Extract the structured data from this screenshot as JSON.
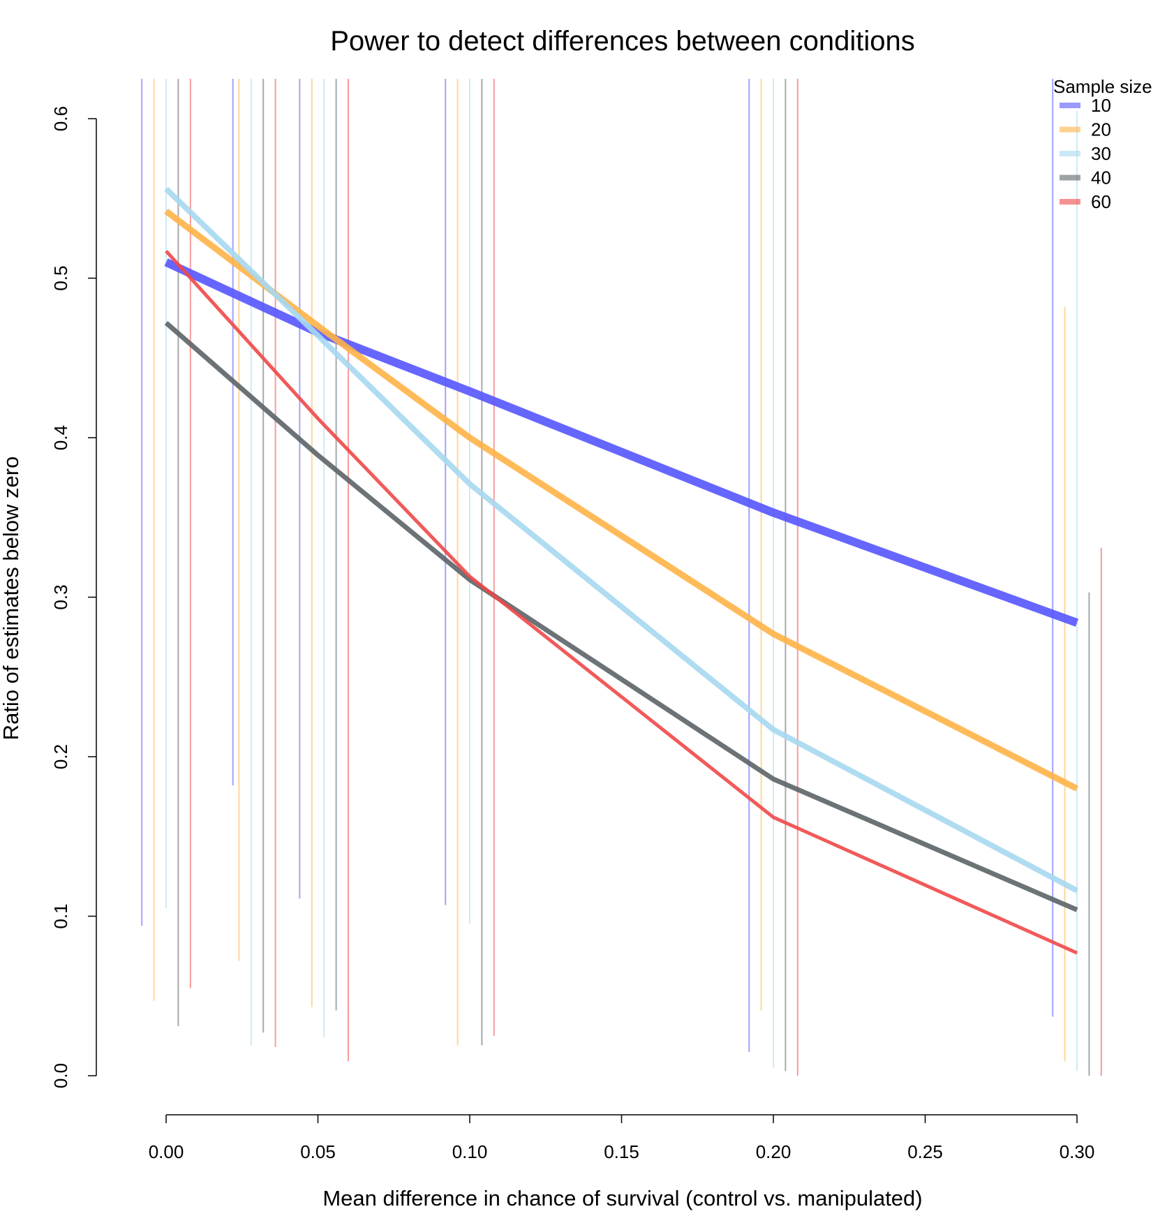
{
  "chart_data": {
    "type": "line",
    "title": "Power to detect differences between conditions",
    "xlabel": "Mean difference in chance of survival (control vs. manipulated)",
    "ylabel": "Ratio of estimates below zero",
    "xlim": [
      0,
      0.3
    ],
    "ylim": [
      0,
      0.6
    ],
    "x_ticks": [
      "0.00",
      "0.05",
      "0.10",
      "0.15",
      "0.20",
      "0.25",
      "0.30"
    ],
    "y_ticks": [
      "0.0",
      "0.1",
      "0.2",
      "0.3",
      "0.4",
      "0.5",
      "0.6"
    ],
    "legend": {
      "title": "Sample size",
      "placement": "top-right"
    },
    "x": [
      0.0,
      0.05,
      0.1,
      0.2,
      0.3
    ],
    "series": [
      {
        "name": "10",
        "color": "#5555ff",
        "values": [
          0.51,
          0.466,
          0.429,
          0.353,
          0.284
        ],
        "interval_lo": [
          0.094,
          0.182,
          0.111,
          0.107,
          0.015,
          0.037
        ],
        "interval_hi": [
          0.625,
          0.625,
          0.625,
          0.625,
          0.625,
          0.625
        ],
        "interval_x": [
          -0.008,
          0.022,
          0.044,
          0.092,
          0.192,
          0.292
        ]
      },
      {
        "name": "20",
        "color": "#ffb347",
        "values": [
          0.542,
          0.47,
          0.4,
          0.277,
          0.18
        ]
      },
      {
        "name": "30",
        "color": "#a6d8ef",
        "values": [
          0.556,
          0.464,
          0.371,
          0.217,
          0.116
        ]
      },
      {
        "name": "40",
        "color": "#5c6468",
        "values": [
          0.472,
          0.389,
          0.311,
          0.186,
          0.104
        ]
      },
      {
        "name": "60",
        "color": "#f04848",
        "values": [
          0.517,
          0.412,
          0.313,
          0.162,
          0.077
        ]
      }
    ],
    "intervals": [
      {
        "series": "10",
        "lines": [
          {
            "x": -0.008,
            "lo": 0.094,
            "hi": 0.625
          },
          {
            "x": 0.022,
            "lo": 0.182,
            "hi": 0.625
          },
          {
            "x": 0.044,
            "lo": 0.111,
            "hi": 0.625
          },
          {
            "x": 0.092,
            "lo": 0.107,
            "hi": 0.625
          },
          {
            "x": 0.192,
            "lo": 0.015,
            "hi": 0.625
          },
          {
            "x": 0.292,
            "lo": 0.037,
            "hi": 0.625
          }
        ]
      },
      {
        "series": "20",
        "lines": [
          {
            "x": -0.004,
            "lo": 0.047,
            "hi": 0.625
          },
          {
            "x": 0.024,
            "lo": 0.072,
            "hi": 0.625
          },
          {
            "x": 0.048,
            "lo": 0.043,
            "hi": 0.625
          },
          {
            "x": 0.096,
            "lo": 0.019,
            "hi": 0.625
          },
          {
            "x": 0.196,
            "lo": 0.041,
            "hi": 0.625
          },
          {
            "x": 0.296,
            "lo": 0.009,
            "hi": 0.482
          }
        ]
      },
      {
        "series": "30",
        "lines": [
          {
            "x": 0.0,
            "lo": 0.105,
            "hi": 0.625
          },
          {
            "x": 0.028,
            "lo": 0.019,
            "hi": 0.625
          },
          {
            "x": 0.052,
            "lo": 0.024,
            "hi": 0.625
          },
          {
            "x": 0.1,
            "lo": 0.095,
            "hi": 0.625
          },
          {
            "x": 0.2,
            "lo": 0.005,
            "hi": 0.625
          },
          {
            "x": 0.3,
            "lo": 0.003,
            "hi": 0.605
          }
        ]
      },
      {
        "series": "40",
        "lines": [
          {
            "x": 0.004,
            "lo": 0.031,
            "hi": 0.625
          },
          {
            "x": 0.032,
            "lo": 0.027,
            "hi": 0.625
          },
          {
            "x": 0.056,
            "lo": 0.041,
            "hi": 0.625
          },
          {
            "x": 0.104,
            "lo": 0.019,
            "hi": 0.625
          },
          {
            "x": 0.204,
            "lo": 0.003,
            "hi": 0.625
          },
          {
            "x": 0.304,
            "lo": 0.0,
            "hi": 0.303
          }
        ]
      },
      {
        "series": "60",
        "lines": [
          {
            "x": 0.008,
            "lo": 0.055,
            "hi": 0.625
          },
          {
            "x": 0.036,
            "lo": 0.018,
            "hi": 0.625
          },
          {
            "x": 0.06,
            "lo": 0.009,
            "hi": 0.625
          },
          {
            "x": 0.108,
            "lo": 0.025,
            "hi": 0.625
          },
          {
            "x": 0.208,
            "lo": 0.0,
            "hi": 0.625
          },
          {
            "x": 0.308,
            "lo": 0.0,
            "hi": 0.331
          }
        ]
      }
    ],
    "line_widths": {
      "10": 12,
      "20": 9,
      "30": 8,
      "40": 7,
      "60": 5
    },
    "line_opacity": 0.9,
    "interval_opacity": 0.55
  }
}
